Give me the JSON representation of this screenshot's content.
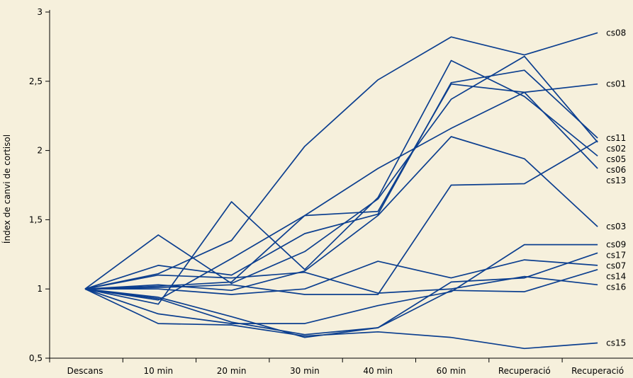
{
  "chart_data": {
    "type": "line",
    "title": "",
    "xlabel": "",
    "ylabel": "Índex de canvi de cortisol",
    "ylim": [
      0.5,
      3
    ],
    "y_ticks": [
      {
        "value": 0.5,
        "label": "0,5"
      },
      {
        "value": 1,
        "label": "1"
      },
      {
        "value": 1.5,
        "label": "1,5"
      },
      {
        "value": 2,
        "label": "2"
      },
      {
        "value": 2.5,
        "label": "2,5"
      },
      {
        "value": 3,
        "label": "3"
      }
    ],
    "categories": [
      "Descans",
      "10 min",
      "20 min",
      "30 min",
      "40 min",
      "60 min",
      "Recuperació",
      "Recuperació"
    ],
    "grid": false,
    "legend": "direct labels at right end of lines",
    "line_color": "#0c3f8f",
    "series": [
      {
        "name": "cs08",
        "values": [
          1.0,
          1.11,
          1.35,
          2.03,
          2.51,
          2.82,
          2.69,
          2.85
        ]
      },
      {
        "name": "cs01",
        "values": [
          1.0,
          1.02,
          1.05,
          1.53,
          1.56,
          2.48,
          2.42,
          2.48
        ]
      },
      {
        "name": "cs11",
        "values": [
          1.0,
          1.17,
          1.1,
          1.4,
          1.54,
          2.49,
          2.58,
          2.09
        ]
      },
      {
        "name": "cs05",
        "values": [
          1.0,
          1.39,
          1.04,
          1.27,
          1.65,
          2.37,
          2.68,
          2.06
        ]
      },
      {
        "name": "cs06",
        "values": [
          1.0,
          0.89,
          1.63,
          1.14,
          1.66,
          2.65,
          2.39,
          1.96
        ]
      },
      {
        "name": "cs13",
        "values": [
          1.0,
          0.92,
          1.22,
          1.53,
          1.87,
          2.16,
          2.42,
          1.87
        ]
      },
      {
        "name": "cs03",
        "values": [
          1.0,
          1.03,
          0.99,
          1.13,
          1.53,
          2.1,
          1.94,
          1.45
        ]
      },
      {
        "name": "cs02",
        "values": [
          1.0,
          1.01,
          1.03,
          0.96,
          0.96,
          1.75,
          1.76,
          2.07
        ]
      },
      {
        "name": "cs07",
        "values": [
          1.0,
          1.0,
          0.96,
          1.0,
          1.2,
          1.08,
          1.21,
          1.17
        ]
      },
      {
        "name": "cs09",
        "values": [
          1.0,
          0.82,
          0.75,
          0.75,
          0.88,
          0.98,
          1.32,
          1.32
        ]
      },
      {
        "name": "cs17",
        "values": [
          1.0,
          0.93,
          0.76,
          0.67,
          0.72,
          1.05,
          1.08,
          1.26
        ]
      },
      {
        "name": "cs16",
        "values": [
          1.0,
          1.1,
          1.08,
          1.12,
          0.97,
          1.0,
          1.09,
          1.03
        ]
      },
      {
        "name": "cs14",
        "values": [
          1.0,
          0.94,
          0.8,
          0.65,
          0.72,
          0.99,
          0.98,
          1.14
        ]
      },
      {
        "name": "cs15",
        "values": [
          1.0,
          0.75,
          0.74,
          0.66,
          0.69,
          0.65,
          0.57,
          0.61
        ]
      }
    ]
  }
}
